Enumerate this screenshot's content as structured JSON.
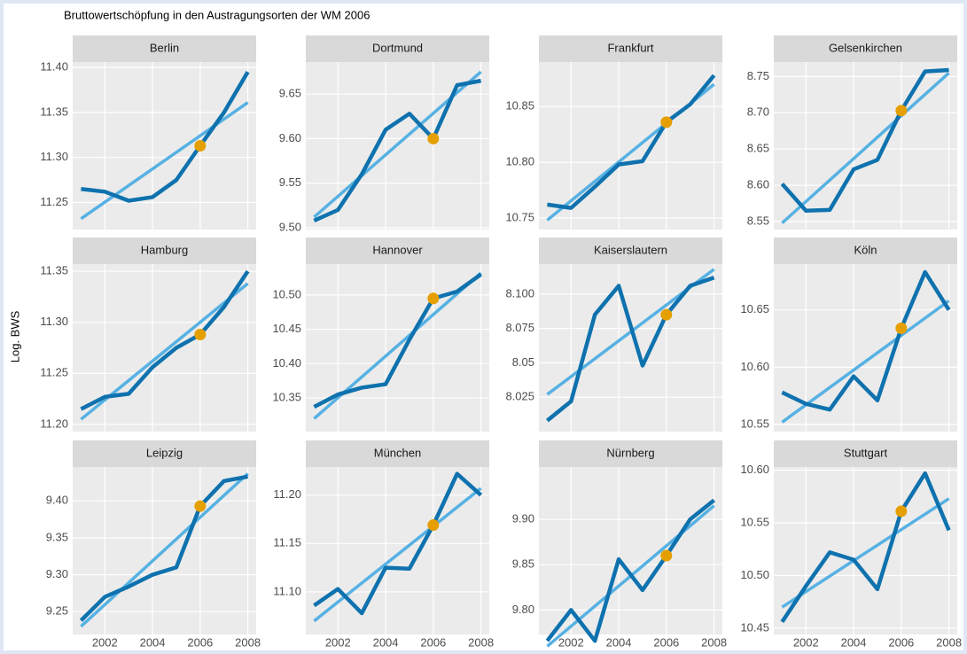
{
  "chart_data": {
    "type": "line",
    "title": "Bruttowertschöpfung in den Austragungsorten der WM 2006",
    "y_label": "Log. BWS",
    "x": [
      2001,
      2002,
      2003,
      2004,
      2005,
      2006,
      2007,
      2008
    ],
    "xlim": [
      2000.65,
      2008.35
    ],
    "xticks": [
      2002,
      2004,
      2006,
      2008
    ],
    "highlight_x": 2006,
    "line_color": "#0f72ae",
    "trend_color": "#56b1e3",
    "highlight_color": "#e69f00",
    "grid": true,
    "panels": [
      {
        "title": "Berlin",
        "values": [
          11.265,
          11.262,
          11.252,
          11.256,
          11.275,
          11.313,
          11.35,
          11.395
        ],
        "trend": [
          11.232,
          11.361
        ],
        "ylim": [
          11.22,
          11.406
        ],
        "yticks": [
          {
            "value": 11.25,
            "label": "11.25"
          },
          {
            "value": 11.3,
            "label": "11.30"
          },
          {
            "value": 11.35,
            "label": "11.35"
          },
          {
            "value": 11.4,
            "label": "11.40"
          }
        ]
      },
      {
        "title": "Dortmund",
        "values": [
          9.508,
          9.52,
          9.56,
          9.61,
          9.628,
          9.6,
          9.66,
          9.665
        ],
        "trend": [
          9.512,
          9.675
        ],
        "ylim": [
          9.498,
          9.686
        ],
        "yticks": [
          {
            "value": 9.5,
            "label": "9.50"
          },
          {
            "value": 9.55,
            "label": "9.55"
          },
          {
            "value": 9.6,
            "label": "9.60"
          },
          {
            "value": 9.65,
            "label": "9.65"
          }
        ]
      },
      {
        "title": "Frankfurt",
        "values": [
          10.762,
          10.759,
          10.778,
          10.798,
          10.801,
          10.836,
          10.852,
          10.878
        ],
        "trend": [
          10.748,
          10.87
        ],
        "ylim": [
          10.7396,
          10.89
        ],
        "yticks": [
          {
            "value": 10.75,
            "label": "10.75"
          },
          {
            "value": 10.8,
            "label": "10.80"
          },
          {
            "value": 10.85,
            "label": "10.85"
          }
        ]
      },
      {
        "title": "Gelsenkirchen",
        "values": [
          8.602,
          8.565,
          8.566,
          8.622,
          8.635,
          8.703,
          8.757,
          8.759
        ],
        "trend": [
          8.548,
          8.755
        ],
        "ylim": [
          8.539,
          8.77
        ],
        "yticks": [
          {
            "value": 8.55,
            "label": "8.55"
          },
          {
            "value": 8.6,
            "label": "8.60"
          },
          {
            "value": 8.65,
            "label": "8.65"
          },
          {
            "value": 8.7,
            "label": "8.70"
          },
          {
            "value": 8.75,
            "label": "8.75"
          }
        ]
      },
      {
        "title": "Hamburg",
        "values": [
          11.215,
          11.227,
          11.23,
          11.256,
          11.275,
          11.288,
          11.315,
          11.35
        ],
        "trend": [
          11.205,
          11.338
        ],
        "ylim": [
          11.193,
          11.357
        ],
        "yticks": [
          {
            "value": 11.2,
            "label": "11.20"
          },
          {
            "value": 11.25,
            "label": "11.25"
          },
          {
            "value": 11.3,
            "label": "11.30"
          },
          {
            "value": 11.35,
            "label": "11.35"
          }
        ]
      },
      {
        "title": "Hannover",
        "values": [
          10.337,
          10.355,
          10.365,
          10.37,
          10.435,
          10.495,
          10.505,
          10.53
        ],
        "trend": [
          10.32,
          10.532
        ],
        "ylim": [
          10.301,
          10.545
        ],
        "yticks": [
          {
            "value": 10.35,
            "label": "10.35"
          },
          {
            "value": 10.4,
            "label": "10.40"
          },
          {
            "value": 10.45,
            "label": "10.45"
          },
          {
            "value": 10.5,
            "label": "10.50"
          }
        ]
      },
      {
        "title": "Kaiserslautern",
        "values": [
          8.008,
          8.022,
          8.085,
          8.106,
          8.048,
          8.085,
          8.106,
          8.112
        ],
        "trend": [
          8.027,
          8.118
        ],
        "ylim": [
          8.0,
          8.1218
        ],
        "yticks": [
          8.025,
          8.05,
          8.075,
          {
            "value": 8.1,
            "label": "8.100"
          }
        ]
      },
      {
        "title": "Köln",
        "values": [
          10.578,
          10.568,
          10.563,
          10.592,
          10.571,
          10.634,
          10.683,
          10.65
        ],
        "trend": [
          10.552,
          10.658
        ],
        "ylim": [
          10.5438,
          10.69
        ],
        "yticks": [
          10.55,
          {
            "value": 10.6,
            "label": "10.60"
          },
          10.65
        ]
      },
      {
        "title": "Leipzig",
        "values": [
          9.238,
          9.27,
          9.284,
          9.3,
          9.31,
          9.393,
          9.427,
          9.433
        ],
        "trend": [
          9.23,
          9.437
        ],
        "ylim": [
          9.219,
          9.446
        ],
        "yticks": [
          9.25,
          {
            "value": 9.3,
            "label": "9.30"
          },
          9.35,
          {
            "value": 9.4,
            "label": "9.40"
          }
        ]
      },
      {
        "title": "München",
        "values": [
          11.086,
          11.103,
          11.078,
          11.125,
          11.124,
          11.169,
          11.222,
          11.2
        ],
        "trend": [
          11.07,
          11.207
        ],
        "ylim": [
          11.056,
          11.229
        ],
        "yticks": [
          {
            "value": 11.1,
            "label": "11.10"
          },
          11.15,
          {
            "value": 11.2,
            "label": "11.20"
          }
        ]
      },
      {
        "title": "Nürnberg",
        "values": [
          9.766,
          9.8,
          9.766,
          9.856,
          9.822,
          9.86,
          9.9,
          9.921
        ],
        "trend": [
          9.76,
          9.915
        ],
        "ylim": [
          9.773,
          9.9577
        ],
        "yticks": [
          {
            "value": 9.8,
            "label": "9.80"
          },
          9.85,
          {
            "value": 9.9,
            "label": "9.90"
          }
        ]
      },
      {
        "title": "Stuttgart",
        "values": [
          10.456,
          10.49,
          10.522,
          10.515,
          10.487,
          10.561,
          10.597,
          10.543
        ],
        "trend": [
          10.47,
          10.573
        ],
        "ylim": [
          10.444,
          10.603
        ],
        "yticks": [
          10.45,
          {
            "value": 10.5,
            "label": "10.50"
          },
          10.55,
          {
            "value": 10.6,
            "label": "10.60"
          }
        ]
      }
    ]
  }
}
